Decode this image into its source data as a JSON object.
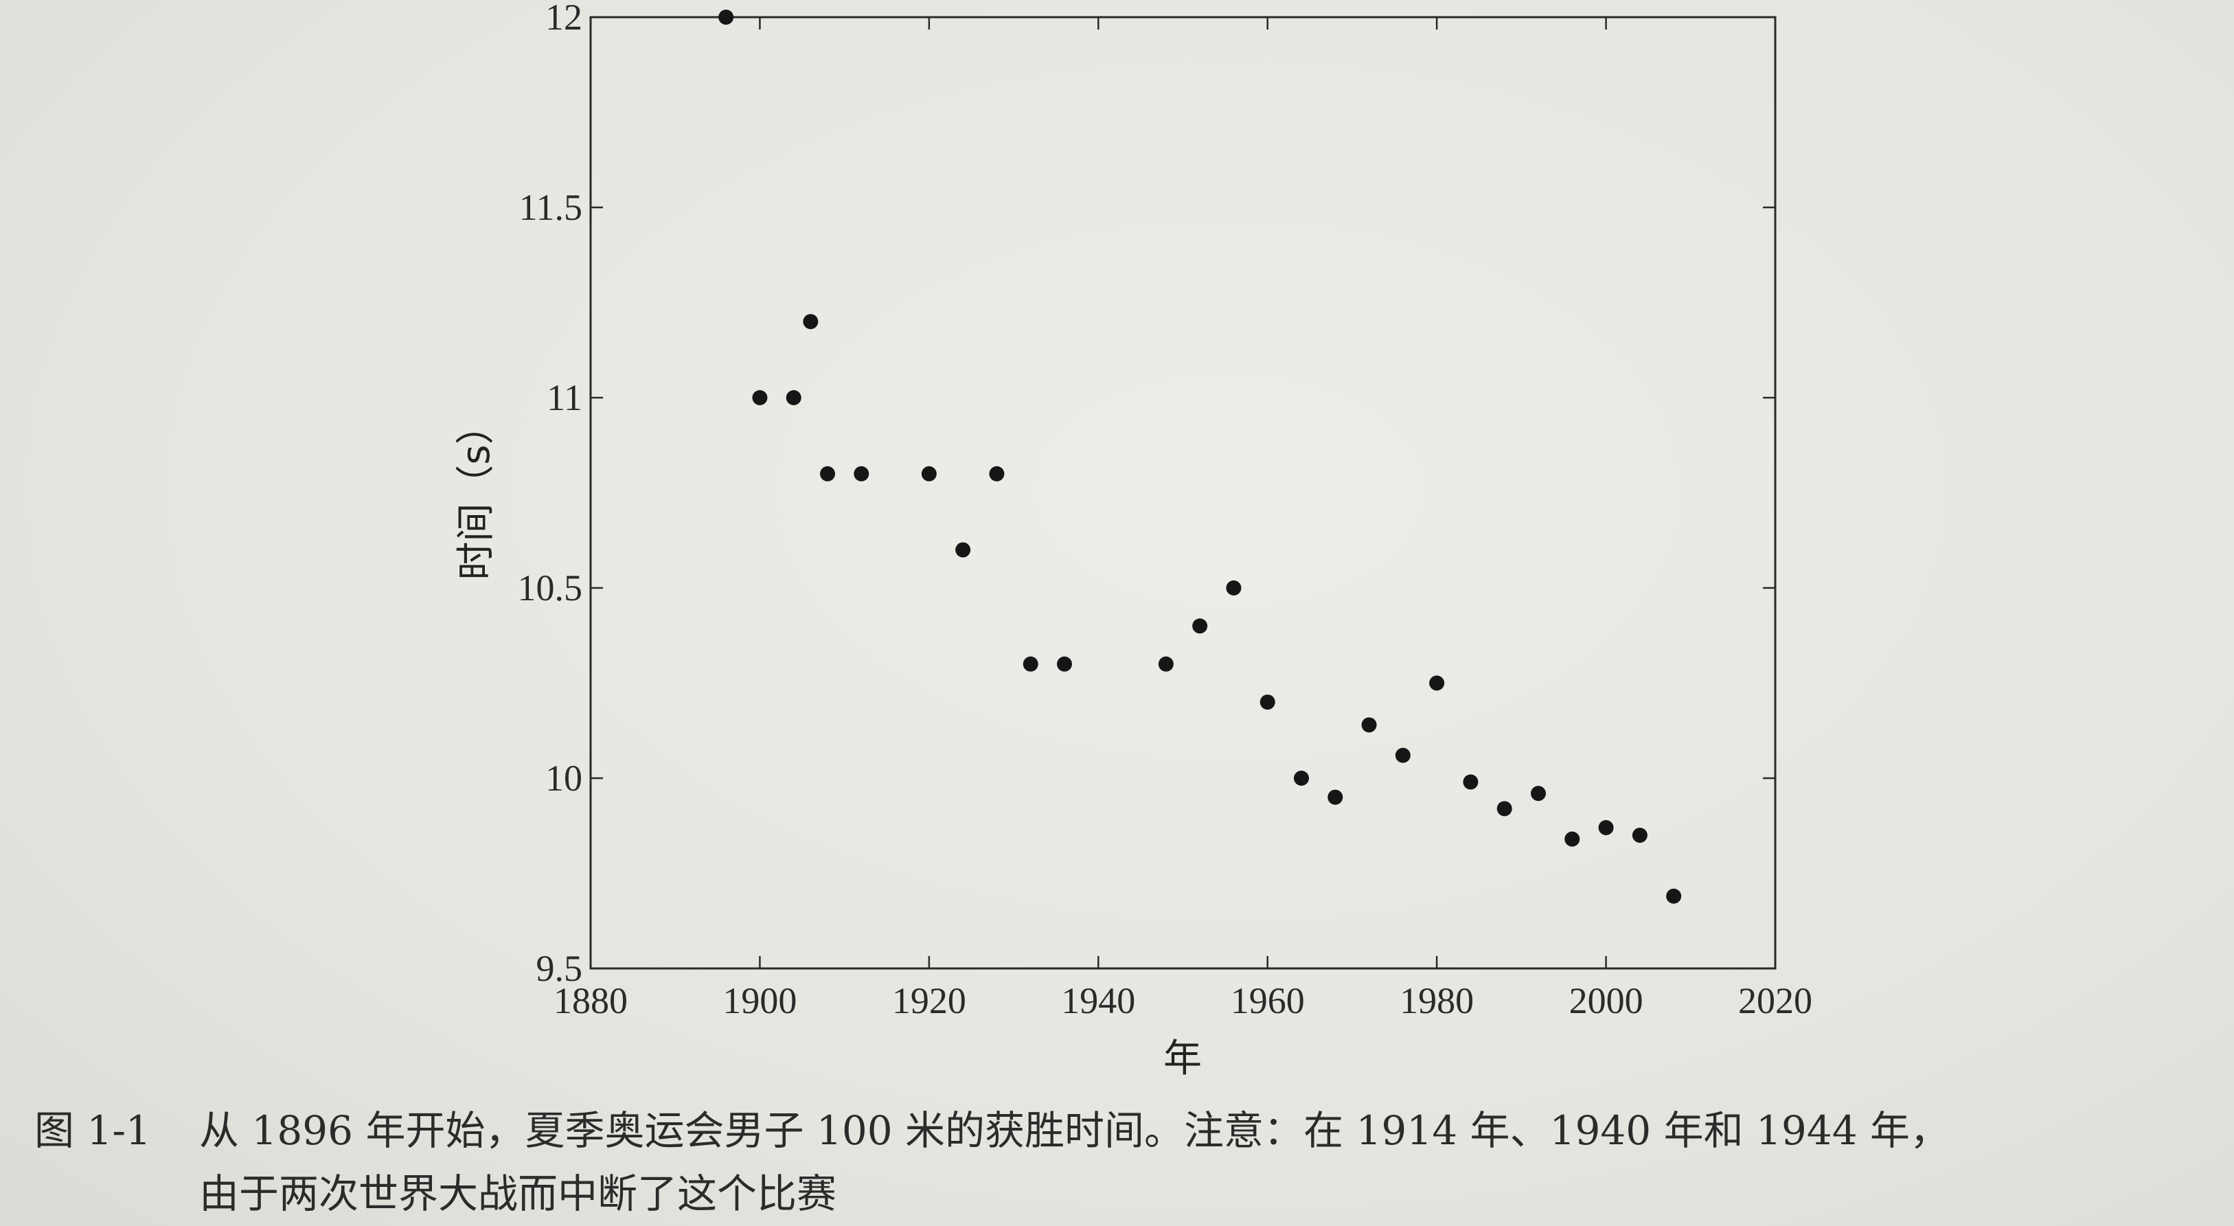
{
  "chart_data": {
    "type": "scatter",
    "title": "",
    "xlabel": "年",
    "ylabel": "时间（s）",
    "xlim": [
      1880,
      2020
    ],
    "ylim": [
      9.5,
      12
    ],
    "xticks": [
      "1880",
      "1900",
      "1920",
      "1940",
      "1960",
      "1980",
      "2000",
      "2020"
    ],
    "yticks": [
      "9.5",
      "10",
      "10.5",
      "11",
      "11.5",
      "12"
    ],
    "grid": false,
    "points": [
      {
        "x": 1896,
        "y": 12.0
      },
      {
        "x": 1900,
        "y": 11.0
      },
      {
        "x": 1904,
        "y": 11.0
      },
      {
        "x": 1906,
        "y": 11.2
      },
      {
        "x": 1908,
        "y": 10.8
      },
      {
        "x": 1912,
        "y": 10.8
      },
      {
        "x": 1920,
        "y": 10.8
      },
      {
        "x": 1924,
        "y": 10.6
      },
      {
        "x": 1928,
        "y": 10.8
      },
      {
        "x": 1932,
        "y": 10.3
      },
      {
        "x": 1936,
        "y": 10.3
      },
      {
        "x": 1948,
        "y": 10.3
      },
      {
        "x": 1952,
        "y": 10.4
      },
      {
        "x": 1956,
        "y": 10.5
      },
      {
        "x": 1960,
        "y": 10.2
      },
      {
        "x": 1964,
        "y": 10.0
      },
      {
        "x": 1968,
        "y": 9.95
      },
      {
        "x": 1972,
        "y": 10.14
      },
      {
        "x": 1976,
        "y": 10.06
      },
      {
        "x": 1980,
        "y": 10.25
      },
      {
        "x": 1984,
        "y": 9.99
      },
      {
        "x": 1988,
        "y": 9.92
      },
      {
        "x": 1992,
        "y": 9.96
      },
      {
        "x": 1996,
        "y": 9.84
      },
      {
        "x": 2000,
        "y": 9.87
      },
      {
        "x": 2004,
        "y": 9.85
      },
      {
        "x": 2008,
        "y": 9.69
      }
    ]
  },
  "caption": {
    "figure_number": "图 1-1",
    "line1": "从 1896 年开始，夏季奥运会男子 100 米的获胜时间。注意：在 1914 年、1940 年和 1944 年，",
    "line2": "由于两次世界大战而中断了这个比赛"
  }
}
